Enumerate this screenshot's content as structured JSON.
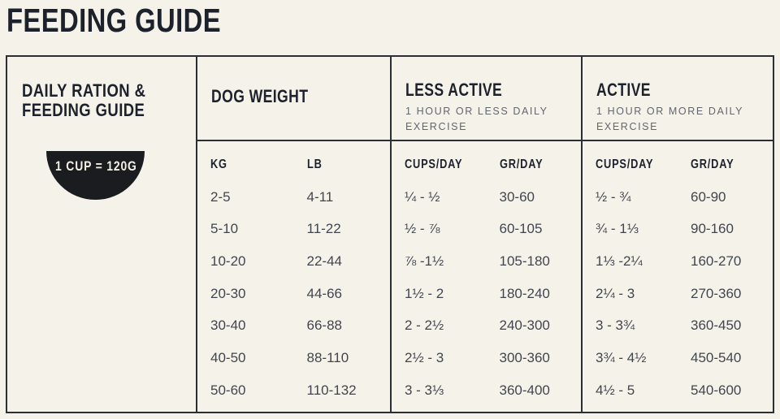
{
  "page": {
    "title": "FEEDING GUIDE"
  },
  "colors": {
    "background": "#f5f2ea",
    "heading_ink": "#1c212b",
    "body_text": "#41464e",
    "muted_text": "#62666d",
    "border": "#2b2e35",
    "badge_background": "#1a1c1f",
    "badge_text": "#f3efe6"
  },
  "table": {
    "intro": {
      "title": "DAILY RATION &\nFEEDING GUIDE",
      "badge_label": "1 CUP = 120G"
    },
    "groups": {
      "dog_weight": {
        "title": "DOG WEIGHT",
        "sub_headers": {
          "col1": "KG",
          "col2": "LB"
        }
      },
      "less_active": {
        "title": "LESS ACTIVE",
        "subtitle": "1 HOUR OR LESS DAILY EXERCISE",
        "sub_headers": {
          "col1": "CUPS/DAY",
          "col2": "GR/DAY"
        }
      },
      "active": {
        "title": "ACTIVE",
        "subtitle": "1 HOUR OR MORE DAILY EXERCISE",
        "sub_headers": {
          "col1": "CUPS/DAY",
          "col2": "GR/DAY"
        }
      }
    },
    "rows": [
      {
        "kg": "2-5",
        "lb": "4-11",
        "less_cups": "¼ - ½",
        "less_gr": "30-60",
        "active_cups": "½ - ¾",
        "active_gr": "60-90"
      },
      {
        "kg": "5-10",
        "lb": "11-22",
        "less_cups": "½ - ⅞",
        "less_gr": "60-105",
        "active_cups": "¾ - 1⅓",
        "active_gr": "90-160"
      },
      {
        "kg": "10-20",
        "lb": "22-44",
        "less_cups": "⅞ -1½",
        "less_gr": "105-180",
        "active_cups": "1⅓ -2¼",
        "active_gr": "160-270"
      },
      {
        "kg": "20-30",
        "lb": "44-66",
        "less_cups": "1½ - 2",
        "less_gr": "180-240",
        "active_cups": "2¼ - 3",
        "active_gr": "270-360"
      },
      {
        "kg": "30-40",
        "lb": "66-88",
        "less_cups": "2 - 2½",
        "less_gr": "240-300",
        "active_cups": "3 - 3¾",
        "active_gr": "360-450"
      },
      {
        "kg": "40-50",
        "lb": "88-110",
        "less_cups": "2½ - 3",
        "less_gr": "300-360",
        "active_cups": "3¾ - 4½",
        "active_gr": "450-540"
      },
      {
        "kg": "50-60",
        "lb": "110-132",
        "less_cups": "3 - 3⅓",
        "less_gr": "360-400",
        "active_cups": "4½ - 5",
        "active_gr": "540-600"
      }
    ]
  }
}
